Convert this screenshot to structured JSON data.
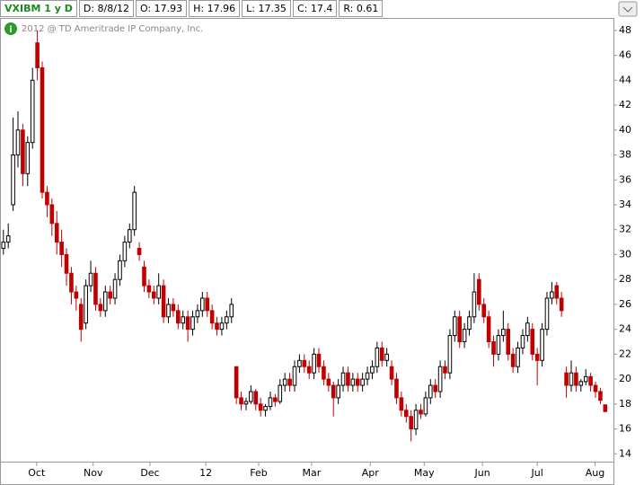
{
  "chart_data": {
    "type": "candlestick",
    "header": [
      "VXIBM 1 y D",
      "D: 8/8/12",
      "O: 17.93",
      "H: 17.96",
      "L: 17.35",
      "C: 17.4",
      "R: 0.61"
    ],
    "copyright": "2012 @ TD Ameritrade IP Company, Inc.",
    "up_color": "#000000",
    "down_color": "#c00000",
    "xlim": [
      -0.7,
      125.7
    ],
    "ylim": [
      13.3,
      49
    ],
    "yticks": [
      14,
      16,
      18,
      20,
      22,
      24,
      26,
      28,
      30,
      32,
      34,
      36,
      38,
      40,
      42,
      44,
      46,
      48
    ],
    "xticks": [
      {
        "value": 6.85,
        "label": "Oct"
      },
      {
        "value": 18.5,
        "label": "Nov"
      },
      {
        "value": 30.2,
        "label": "Dec"
      },
      {
        "value": 41.7,
        "label": "12"
      },
      {
        "value": 52.6,
        "label": "Feb"
      },
      {
        "value": 63.5,
        "label": "Mar"
      },
      {
        "value": 75.6,
        "label": "Apr"
      },
      {
        "value": 86.7,
        "label": "May"
      },
      {
        "value": 98.7,
        "label": "Jun"
      },
      {
        "value": 110,
        "label": "Jul"
      },
      {
        "value": 121.9,
        "label": "Aug"
      }
    ],
    "ohlc": [
      [
        30.5,
        32,
        30,
        31
      ],
      [
        31,
        32.5,
        30.5,
        31.5
      ],
      [
        34,
        41,
        33.5,
        38
      ],
      [
        38,
        41.5,
        37,
        40
      ],
      [
        40,
        40.5,
        35.5,
        36.5
      ],
      [
        36.5,
        39.5,
        35.5,
        39
      ],
      [
        39,
        45,
        38.5,
        44
      ],
      [
        47,
        48,
        44,
        45
      ],
      [
        45,
        45.5,
        34.5,
        35
      ],
      [
        35,
        35.5,
        33,
        34
      ],
      [
        34,
        34.5,
        31.5,
        32.5
      ],
      [
        32.5,
        33.5,
        30,
        31
      ],
      [
        31,
        32,
        29,
        30
      ],
      [
        30,
        30.5,
        27.5,
        28.5
      ],
      [
        28.5,
        29,
        26,
        27
      ],
      [
        27,
        27.5,
        25.5,
        26.5
      ],
      [
        26,
        26.5,
        23,
        24
      ],
      [
        24.5,
        28,
        24,
        27.5
      ],
      [
        27.5,
        29.5,
        27,
        28.5
      ],
      [
        28.5,
        29,
        25.5,
        26
      ],
      [
        26,
        26.5,
        25,
        25.5
      ],
      [
        25.5,
        27.5,
        25,
        27
      ],
      [
        27,
        27.5,
        26,
        26.5
      ],
      [
        26.5,
        28.5,
        26,
        28
      ],
      [
        28,
        30,
        27.5,
        29.5
      ],
      [
        29.5,
        31.5,
        29,
        31
      ],
      [
        31,
        32.5,
        30.5,
        32
      ],
      [
        32,
        35.5,
        31.5,
        35
      ],
      [
        30.5,
        31,
        29.5,
        30
      ],
      [
        29,
        29.5,
        27,
        27.5
      ],
      [
        27.5,
        28,
        26.5,
        27
      ],
      [
        27,
        27.5,
        26,
        26.5
      ],
      [
        26.5,
        28.5,
        26,
        27.5
      ],
      [
        27.5,
        28,
        24.5,
        25
      ],
      [
        25,
        26.5,
        24.5,
        26
      ],
      [
        26,
        26.5,
        25,
        25.5
      ],
      [
        25.5,
        26,
        24,
        24.5
      ],
      [
        24.5,
        25.5,
        24,
        25
      ],
      [
        25,
        25.5,
        23,
        24
      ],
      [
        24,
        25.5,
        23.5,
        25
      ],
      [
        25,
        26,
        24.5,
        25.5
      ],
      [
        25.5,
        27,
        25,
        26.5
      ],
      [
        26.5,
        27,
        25,
        25.5
      ],
      [
        25.5,
        26,
        24,
        24.5
      ],
      [
        24.5,
        25,
        23.5,
        24
      ],
      [
        24,
        25,
        23.5,
        24.5
      ],
      [
        24.5,
        25.5,
        24,
        25
      ],
      [
        25,
        26.5,
        24.5,
        26
      ],
      [
        21,
        21,
        18,
        18.5
      ],
      [
        18.5,
        19,
        17.5,
        18
      ],
      [
        18,
        18.5,
        17.5,
        18.2
      ],
      [
        18.2,
        19.5,
        18,
        19
      ],
      [
        19,
        19.2,
        17.5,
        18
      ],
      [
        18,
        18.5,
        17,
        17.5
      ],
      [
        17.5,
        18,
        17,
        17.8
      ],
      [
        17.8,
        19,
        17.5,
        18.5
      ],
      [
        18.5,
        18.8,
        17.8,
        18.2
      ],
      [
        18.2,
        20,
        18,
        19.5
      ],
      [
        19.5,
        20.5,
        19,
        20
      ],
      [
        20,
        20.5,
        19,
        19.5
      ],
      [
        19.5,
        21.5,
        19,
        21
      ],
      [
        21,
        22,
        20.5,
        21.5
      ],
      [
        21.5,
        22,
        20.5,
        21
      ],
      [
        21,
        21.5,
        20,
        20.5
      ],
      [
        20.5,
        22.5,
        20,
        22
      ],
      [
        22,
        22.5,
        20.5,
        21
      ],
      [
        21,
        21.5,
        19.5,
        20
      ],
      [
        20,
        20.5,
        19,
        19.5
      ],
      [
        19.5,
        19.8,
        17,
        18.5
      ],
      [
        18.5,
        20,
        18,
        19.5
      ],
      [
        19.5,
        21,
        19,
        20.5
      ],
      [
        20.5,
        21,
        19,
        19.5
      ],
      [
        19.5,
        20.5,
        19,
        20
      ],
      [
        20,
        20.5,
        19,
        19.5
      ],
      [
        19.5,
        20.5,
        19,
        20
      ],
      [
        20,
        21,
        19.5,
        20.5
      ],
      [
        20.5,
        21.5,
        20,
        21
      ],
      [
        21,
        23,
        20.5,
        22.5
      ],
      [
        22.5,
        23,
        21,
        21.5
      ],
      [
        21.5,
        22.5,
        21,
        22
      ],
      [
        21,
        21.5,
        19.5,
        20
      ],
      [
        20,
        20.5,
        18,
        18.5
      ],
      [
        18.5,
        19,
        17,
        17.5
      ],
      [
        17.5,
        18,
        16.5,
        17
      ],
      [
        17,
        17.5,
        15,
        16
      ],
      [
        16,
        18,
        15.5,
        17.5
      ],
      [
        17.5,
        18,
        16.8,
        17.2
      ],
      [
        17.2,
        19,
        17,
        18.5
      ],
      [
        18.5,
        20,
        18,
        19.5
      ],
      [
        19.5,
        20,
        18.5,
        19
      ],
      [
        19,
        21.5,
        18.5,
        21
      ],
      [
        21,
        21.5,
        20,
        20.5
      ],
      [
        20.5,
        24,
        20,
        23.5
      ],
      [
        23.5,
        25.5,
        23,
        25
      ],
      [
        25,
        25.5,
        22.5,
        23
      ],
      [
        23,
        24.5,
        22.5,
        24
      ],
      [
        24,
        25.5,
        23.5,
        25
      ],
      [
        25,
        28.5,
        24.5,
        27
      ],
      [
        28,
        28.5,
        25.5,
        26
      ],
      [
        26,
        26.5,
        24.5,
        25
      ],
      [
        25,
        25.5,
        22.5,
        23
      ],
      [
        23,
        23.5,
        21,
        22
      ],
      [
        22,
        24,
        21.5,
        23.5
      ],
      [
        23.5,
        25.5,
        23,
        24
      ],
      [
        24,
        24.5,
        21.5,
        22
      ],
      [
        22,
        22.5,
        20.5,
        21
      ],
      [
        21,
        23,
        20.5,
        22.5
      ],
      [
        22.5,
        24,
        22,
        23.5
      ],
      [
        23.5,
        25,
        23,
        24.5
      ],
      [
        24,
        24.5,
        21.5,
        22
      ],
      [
        22,
        22.5,
        19.5,
        21.5
      ],
      [
        21.5,
        24.5,
        21,
        24
      ],
      [
        24,
        27,
        23.5,
        26.5
      ],
      [
        26.5,
        27.8,
        26,
        27
      ],
      [
        27.5,
        27.8,
        26,
        26.5
      ],
      [
        26.5,
        27,
        25,
        25.5
      ],
      [
        20.5,
        21,
        18.5,
        19.5
      ],
      [
        19.5,
        21.5,
        19,
        20.5
      ],
      [
        20.5,
        21,
        19,
        19.5
      ],
      [
        19.5,
        20,
        19,
        19.8
      ],
      [
        19.8,
        20.8,
        19.5,
        20.2
      ],
      [
        20.2,
        20.5,
        19,
        19.5
      ],
      [
        19.5,
        19.8,
        18.5,
        19
      ],
      [
        19,
        19.3,
        18,
        18.3
      ],
      [
        17.93,
        17.96,
        17.35,
        17.4
      ]
    ]
  }
}
